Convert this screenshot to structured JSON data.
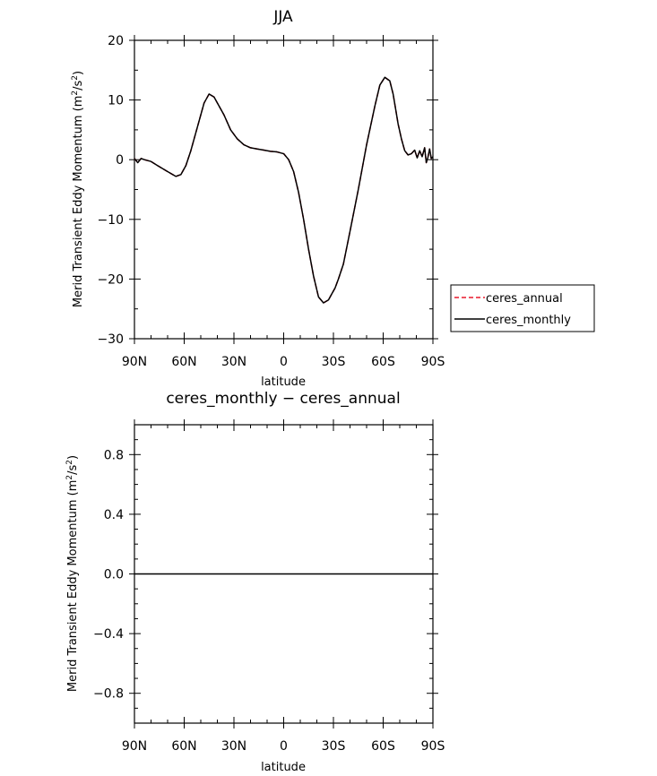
{
  "chart_data": [
    {
      "type": "line",
      "title": "JJA",
      "xlabel": "latitude",
      "ylabel": "Merid Transient Eddy Momentum (m²/s²)",
      "ylabel_main": "Merid Transient Eddy Momentum (m",
      "ylabel_sup": "2",
      "ylabel_mid": "/s",
      "ylabel_sup2": "2",
      "ylabel_end": ")",
      "xlim": [
        90,
        -90
      ],
      "ylim": [
        -30,
        20
      ],
      "x_ticks": [
        {
          "value": 90,
          "label": "90N"
        },
        {
          "value": 60,
          "label": "60N"
        },
        {
          "value": 30,
          "label": "30N"
        },
        {
          "value": 0,
          "label": "0"
        },
        {
          "value": -30,
          "label": "30S"
        },
        {
          "value": -60,
          "label": "60S"
        },
        {
          "value": -90,
          "label": "90S"
        }
      ],
      "y_ticks": [
        {
          "value": 20,
          "label": "20"
        },
        {
          "value": 10,
          "label": "10"
        },
        {
          "value": 0,
          "label": "0"
        },
        {
          "value": -10,
          "label": "−10"
        },
        {
          "value": -20,
          "label": "−20"
        },
        {
          "value": -30,
          "label": "−30"
        }
      ],
      "series": [
        {
          "name": "ceres_annual",
          "color": "#e8192c",
          "dash": "dashed",
          "x": [
            90,
            88,
            86,
            84,
            80,
            76,
            70,
            65,
            62,
            59,
            56,
            52,
            48,
            45,
            42,
            39,
            36,
            32,
            28,
            24,
            20,
            16,
            12,
            8,
            4,
            0,
            -3,
            -6,
            -9,
            -12,
            -15,
            -18,
            -21,
            -24,
            -27,
            -29,
            -31,
            -33,
            -36,
            -40,
            -45,
            -50,
            -55,
            -58,
            -61,
            -64,
            -66,
            -67.5,
            -69,
            -71,
            -73,
            -75,
            -77,
            -79,
            -80.5,
            -82,
            -83.5,
            -85,
            -86,
            -87,
            -88,
            -89,
            -90
          ],
          "y": [
            0.2,
            -0.5,
            0.2,
            0,
            -0.3,
            -1.0,
            -2.0,
            -2.8,
            -2.5,
            -1.0,
            1.5,
            5.5,
            9.5,
            11.0,
            10.5,
            9.0,
            7.5,
            5.0,
            3.5,
            2.5,
            2.0,
            1.8,
            1.6,
            1.4,
            1.3,
            1.0,
            0,
            -2.0,
            -5.5,
            -10.0,
            -15.0,
            -19.5,
            -23.0,
            -24.0,
            -23.5,
            -22.5,
            -21.5,
            -20.0,
            -17.5,
            -12.0,
            -5.0,
            2.5,
            9.0,
            12.5,
            13.8,
            13.2,
            11.0,
            8.5,
            6.0,
            3.5,
            1.5,
            0.8,
            1.0,
            1.6,
            0.3,
            1.5,
            0.5,
            2.0,
            -0.5,
            0.4,
            1.8,
            0.2,
            0.5
          ]
        },
        {
          "name": "ceres_monthly",
          "color": "#000000",
          "dash": "solid",
          "x": [
            90,
            88,
            86,
            84,
            80,
            76,
            70,
            65,
            62,
            59,
            56,
            52,
            48,
            45,
            42,
            39,
            36,
            32,
            28,
            24,
            20,
            16,
            12,
            8,
            4,
            0,
            -3,
            -6,
            -9,
            -12,
            -15,
            -18,
            -21,
            -24,
            -27,
            -29,
            -31,
            -33,
            -36,
            -40,
            -45,
            -50,
            -55,
            -58,
            -61,
            -64,
            -66,
            -67.5,
            -69,
            -71,
            -73,
            -75,
            -77,
            -79,
            -80.5,
            -82,
            -83.5,
            -85,
            -86,
            -87,
            -88,
            -89,
            -90
          ],
          "y": [
            0.2,
            -0.5,
            0.2,
            0,
            -0.3,
            -1.0,
            -2.0,
            -2.8,
            -2.5,
            -1.0,
            1.5,
            5.5,
            9.5,
            11.0,
            10.5,
            9.0,
            7.5,
            5.0,
            3.5,
            2.5,
            2.0,
            1.8,
            1.6,
            1.4,
            1.3,
            1.0,
            0,
            -2.0,
            -5.5,
            -10.0,
            -15.0,
            -19.5,
            -23.0,
            -24.0,
            -23.5,
            -22.5,
            -21.5,
            -20.0,
            -17.5,
            -12.0,
            -5.0,
            2.5,
            9.0,
            12.5,
            13.8,
            13.2,
            11.0,
            8.5,
            6.0,
            3.5,
            1.5,
            0.8,
            1.0,
            1.6,
            0.3,
            1.5,
            0.5,
            2.0,
            -0.5,
            0.4,
            1.8,
            0.2,
            0.5
          ]
        }
      ],
      "legend": {
        "placement": "right",
        "entries": [
          {
            "label": "ceres_annual",
            "color": "#e8192c",
            "dash": "dashed"
          },
          {
            "label": "ceres_monthly",
            "color": "#000000",
            "dash": "solid"
          }
        ]
      }
    },
    {
      "type": "line",
      "title": "ceres_monthly − ceres_annual",
      "xlabel": "latitude",
      "ylabel": "Merid Transient Eddy Momentum (m²/s²)",
      "xlim": [
        90,
        -90
      ],
      "ylim": [
        -1.0,
        1.0
      ],
      "x_ticks": [
        {
          "value": 90,
          "label": "90N"
        },
        {
          "value": 60,
          "label": "60N"
        },
        {
          "value": 30,
          "label": "30N"
        },
        {
          "value": 0,
          "label": "0"
        },
        {
          "value": -30,
          "label": "30S"
        },
        {
          "value": -60,
          "label": "60S"
        },
        {
          "value": -90,
          "label": "90S"
        }
      ],
      "y_ticks": [
        {
          "value": 0.8,
          "label": "0.8"
        },
        {
          "value": 0.4,
          "label": "0.4"
        },
        {
          "value": 0.0,
          "label": "0.0"
        },
        {
          "value": -0.4,
          "label": "−0.4"
        },
        {
          "value": -0.8,
          "label": "−0.8"
        }
      ],
      "series": [
        {
          "color": "#000000",
          "dash": "solid",
          "x": [
            90,
            -90
          ],
          "y": [
            0,
            0
          ]
        }
      ]
    }
  ]
}
